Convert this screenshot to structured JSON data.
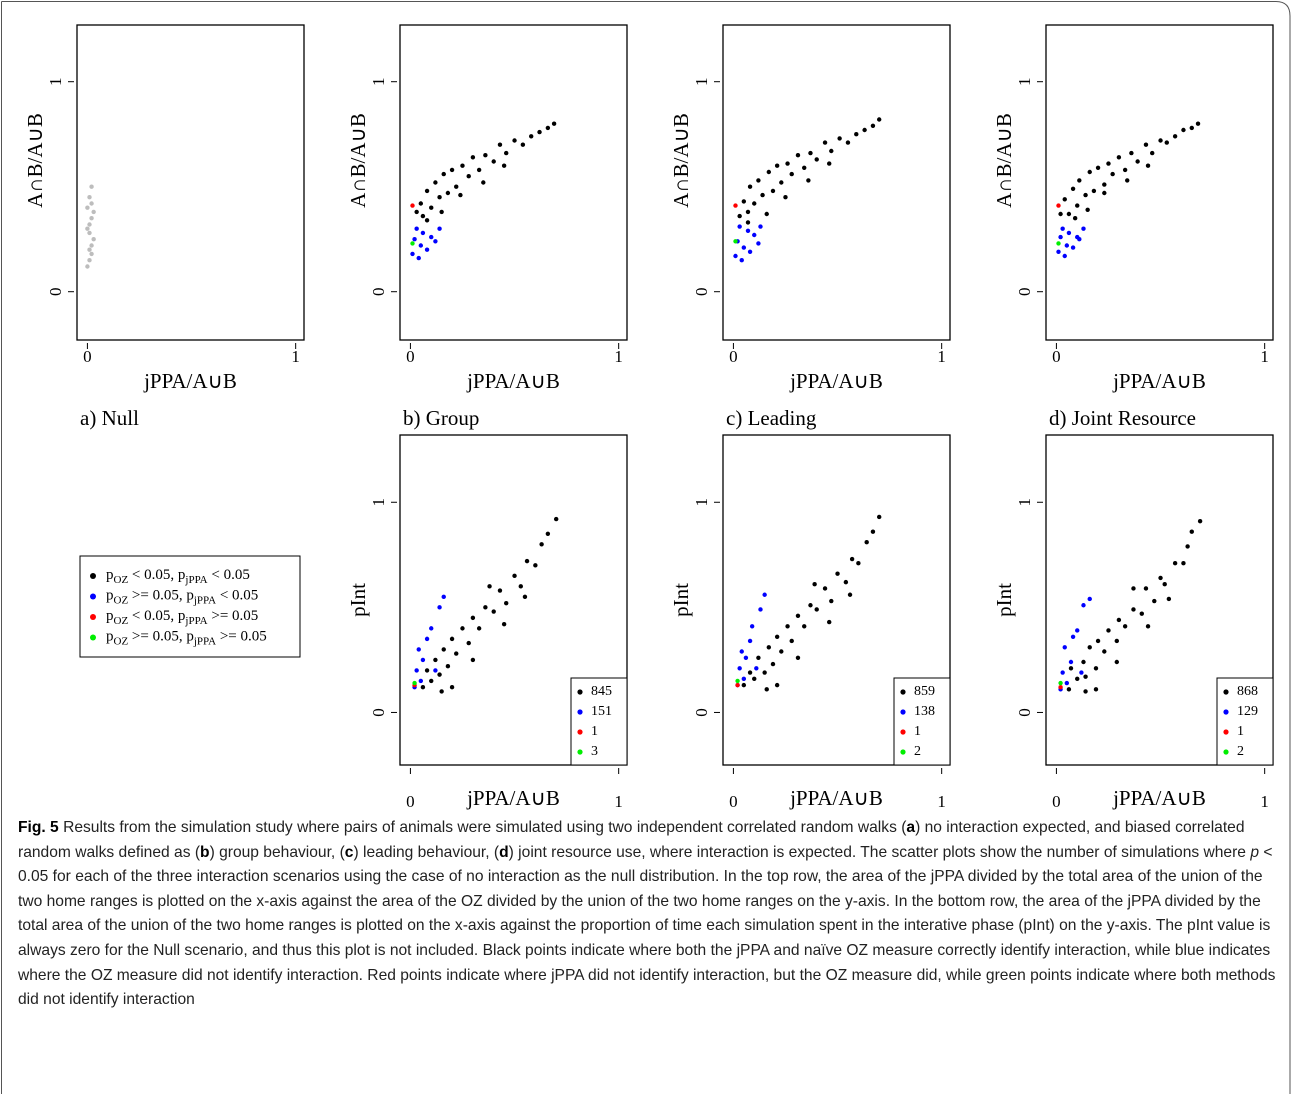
{
  "chart_data": [
    {
      "type": "scatter",
      "panel_label": "a) Null",
      "x_label": "jPPA/A∪B",
      "y_label": "A∩B/A∪B",
      "xlim": [
        -0.05,
        1.04
      ],
      "ylim": [
        -0.23,
        1.27
      ],
      "xticks": [
        0,
        1
      ],
      "yticks": [
        0,
        1
      ],
      "series": [
        {
          "color": "#bdbdbd",
          "x": [
            0.0,
            0.01,
            0.01,
            0.02,
            0.02,
            0.02,
            0.03,
            0.01,
            0.0,
            0.02,
            0.03,
            0.01,
            0.02,
            0.01,
            0.0
          ],
          "y": [
            0.12,
            0.2,
            0.28,
            0.35,
            0.42,
            0.5,
            0.25,
            0.15,
            0.3,
            0.22,
            0.38,
            0.45,
            0.18,
            0.32,
            0.4
          ]
        }
      ]
    },
    {
      "type": "scatter",
      "panel_label": "b) Group",
      "x_label": "jPPA/A∪B",
      "y_label": "A∩B/A∪B",
      "xlim": [
        -0.05,
        1.04
      ],
      "ylim": [
        -0.23,
        1.27
      ],
      "xticks": [
        0,
        1
      ],
      "yticks": [
        0,
        1
      ],
      "series": [
        {
          "color": "#000000",
          "x": [
            0.03,
            0.05,
            0.06,
            0.08,
            0.1,
            0.12,
            0.14,
            0.16,
            0.18,
            0.2,
            0.22,
            0.25,
            0.28,
            0.3,
            0.33,
            0.36,
            0.4,
            0.43,
            0.46,
            0.5,
            0.54,
            0.58,
            0.62,
            0.66,
            0.69,
            0.08,
            0.15,
            0.24,
            0.35,
            0.45
          ],
          "y": [
            0.38,
            0.42,
            0.36,
            0.48,
            0.4,
            0.52,
            0.45,
            0.56,
            0.47,
            0.58,
            0.5,
            0.6,
            0.55,
            0.64,
            0.58,
            0.65,
            0.62,
            0.7,
            0.66,
            0.72,
            0.7,
            0.74,
            0.76,
            0.78,
            0.8,
            0.34,
            0.38,
            0.46,
            0.52,
            0.6
          ]
        },
        {
          "color": "#0000ff",
          "x": [
            0.01,
            0.02,
            0.03,
            0.04,
            0.05,
            0.06,
            0.08,
            0.1,
            0.12,
            0.14
          ],
          "y": [
            0.18,
            0.25,
            0.3,
            0.16,
            0.22,
            0.28,
            0.2,
            0.26,
            0.24,
            0.3
          ]
        },
        {
          "color": "#ff0000",
          "x": [
            0.01
          ],
          "y": [
            0.41
          ]
        },
        {
          "color": "#00ee00",
          "x": [
            0.01
          ],
          "y": [
            0.23
          ]
        }
      ]
    },
    {
      "type": "scatter",
      "panel_label": "c) Leading",
      "x_label": "jPPA/A∪B",
      "y_label": "A∩B/A∪B",
      "xlim": [
        -0.05,
        1.04
      ],
      "ylim": [
        -0.23,
        1.27
      ],
      "xticks": [
        0,
        1
      ],
      "yticks": [
        0,
        1
      ],
      "series": [
        {
          "color": "#000000",
          "x": [
            0.03,
            0.05,
            0.07,
            0.08,
            0.1,
            0.12,
            0.14,
            0.17,
            0.19,
            0.21,
            0.23,
            0.26,
            0.28,
            0.31,
            0.34,
            0.37,
            0.4,
            0.44,
            0.47,
            0.51,
            0.55,
            0.59,
            0.63,
            0.67,
            0.7,
            0.07,
            0.16,
            0.25,
            0.36,
            0.46
          ],
          "y": [
            0.36,
            0.43,
            0.38,
            0.5,
            0.42,
            0.53,
            0.46,
            0.57,
            0.48,
            0.6,
            0.52,
            0.61,
            0.56,
            0.65,
            0.59,
            0.66,
            0.63,
            0.71,
            0.67,
            0.73,
            0.71,
            0.75,
            0.77,
            0.79,
            0.82,
            0.33,
            0.37,
            0.45,
            0.53,
            0.61
          ]
        },
        {
          "color": "#0000ff",
          "x": [
            0.01,
            0.02,
            0.03,
            0.04,
            0.05,
            0.07,
            0.08,
            0.1,
            0.12,
            0.13
          ],
          "y": [
            0.17,
            0.24,
            0.31,
            0.15,
            0.21,
            0.29,
            0.19,
            0.27,
            0.23,
            0.31
          ]
        },
        {
          "color": "#ff0000",
          "x": [
            0.01
          ],
          "y": [
            0.41
          ]
        },
        {
          "color": "#00ee00",
          "x": [
            0.01
          ],
          "y": [
            0.24
          ]
        }
      ]
    },
    {
      "type": "scatter",
      "panel_label": "d) Joint Resource",
      "x_label": "jPPA/A∪B",
      "y_label": "A∩B/A∪B",
      "xlim": [
        -0.05,
        1.04
      ],
      "ylim": [
        -0.23,
        1.27
      ],
      "xticks": [
        0,
        1
      ],
      "yticks": [
        0,
        1
      ],
      "series": [
        {
          "color": "#000000",
          "x": [
            0.02,
            0.04,
            0.06,
            0.08,
            0.1,
            0.11,
            0.14,
            0.16,
            0.18,
            0.2,
            0.23,
            0.25,
            0.27,
            0.3,
            0.33,
            0.36,
            0.39,
            0.43,
            0.46,
            0.5,
            0.53,
            0.57,
            0.61,
            0.65,
            0.68,
            0.09,
            0.15,
            0.23,
            0.34,
            0.44
          ],
          "y": [
            0.37,
            0.44,
            0.37,
            0.49,
            0.41,
            0.53,
            0.46,
            0.57,
            0.48,
            0.59,
            0.51,
            0.61,
            0.56,
            0.64,
            0.58,
            0.66,
            0.62,
            0.7,
            0.66,
            0.72,
            0.71,
            0.74,
            0.77,
            0.78,
            0.8,
            0.35,
            0.39,
            0.47,
            0.53,
            0.6
          ]
        },
        {
          "color": "#0000ff",
          "x": [
            0.01,
            0.02,
            0.03,
            0.04,
            0.05,
            0.06,
            0.08,
            0.1,
            0.11,
            0.13
          ],
          "y": [
            0.19,
            0.26,
            0.3,
            0.17,
            0.22,
            0.28,
            0.21,
            0.26,
            0.25,
            0.3
          ]
        },
        {
          "color": "#ff0000",
          "x": [
            0.01
          ],
          "y": [
            0.41
          ]
        },
        {
          "color": "#00ee00",
          "x": [
            0.01
          ],
          "y": [
            0.23
          ]
        }
      ]
    },
    {
      "type": "scatter",
      "x_label": "jPPA/A∪B",
      "y_label": "pInt",
      "xlim": [
        -0.05,
        1.04
      ],
      "ylim": [
        -0.25,
        1.32
      ],
      "xticks": [
        0,
        1
      ],
      "yticks": [
        0,
        1
      ],
      "series": [
        {
          "color": "#000000",
          "count": 845,
          "x": [
            0.06,
            0.08,
            0.1,
            0.12,
            0.14,
            0.16,
            0.18,
            0.2,
            0.22,
            0.25,
            0.28,
            0.3,
            0.33,
            0.36,
            0.4,
            0.43,
            0.46,
            0.5,
            0.53,
            0.56,
            0.6,
            0.63,
            0.66,
            0.7,
            0.2,
            0.3,
            0.45,
            0.55,
            0.15,
            0.38
          ],
          "y": [
            0.12,
            0.2,
            0.15,
            0.25,
            0.18,
            0.3,
            0.22,
            0.35,
            0.28,
            0.4,
            0.33,
            0.45,
            0.4,
            0.5,
            0.48,
            0.58,
            0.52,
            0.65,
            0.6,
            0.72,
            0.7,
            0.8,
            0.85,
            0.92,
            0.12,
            0.25,
            0.42,
            0.55,
            0.1,
            0.6
          ]
        },
        {
          "color": "#0000ff",
          "count": 151,
          "x": [
            0.02,
            0.03,
            0.04,
            0.05,
            0.06,
            0.08,
            0.1,
            0.12,
            0.14,
            0.16
          ],
          "y": [
            0.12,
            0.2,
            0.3,
            0.15,
            0.25,
            0.35,
            0.4,
            0.2,
            0.5,
            0.55
          ]
        },
        {
          "color": "#ff0000",
          "count": 1,
          "x": [
            0.02
          ],
          "y": [
            0.13
          ]
        },
        {
          "color": "#00ee00",
          "count": 3,
          "x": [
            0.02
          ],
          "y": [
            0.14
          ]
        }
      ]
    },
    {
      "type": "scatter",
      "x_label": "jPPA/A∪B",
      "y_label": "pInt",
      "xlim": [
        -0.05,
        1.04
      ],
      "ylim": [
        -0.25,
        1.32
      ],
      "xticks": [
        0,
        1
      ],
      "yticks": [
        0,
        1
      ],
      "series": [
        {
          "color": "#000000",
          "count": 859,
          "x": [
            0.05,
            0.08,
            0.1,
            0.12,
            0.15,
            0.17,
            0.19,
            0.21,
            0.23,
            0.26,
            0.28,
            0.31,
            0.34,
            0.37,
            0.4,
            0.44,
            0.47,
            0.5,
            0.54,
            0.57,
            0.6,
            0.64,
            0.67,
            0.7,
            0.21,
            0.31,
            0.46,
            0.56,
            0.16,
            0.39
          ],
          "y": [
            0.13,
            0.19,
            0.16,
            0.26,
            0.19,
            0.31,
            0.23,
            0.36,
            0.29,
            0.41,
            0.34,
            0.46,
            0.41,
            0.51,
            0.49,
            0.59,
            0.53,
            0.66,
            0.62,
            0.73,
            0.71,
            0.81,
            0.86,
            0.93,
            0.13,
            0.26,
            0.43,
            0.56,
            0.11,
            0.61
          ]
        },
        {
          "color": "#0000ff",
          "count": 138,
          "x": [
            0.02,
            0.03,
            0.04,
            0.05,
            0.06,
            0.08,
            0.09,
            0.11,
            0.13,
            0.15
          ],
          "y": [
            0.13,
            0.21,
            0.29,
            0.16,
            0.26,
            0.34,
            0.41,
            0.21,
            0.49,
            0.56
          ]
        },
        {
          "color": "#ff0000",
          "count": 1,
          "x": [
            0.02
          ],
          "y": [
            0.13
          ]
        },
        {
          "color": "#00ee00",
          "count": 2,
          "x": [
            0.02
          ],
          "y": [
            0.15
          ]
        }
      ]
    },
    {
      "type": "scatter",
      "x_label": "jPPA/A∪B",
      "y_label": "pInt",
      "xlim": [
        -0.05,
        1.04
      ],
      "ylim": [
        -0.25,
        1.32
      ],
      "xticks": [
        0,
        1
      ],
      "yticks": [
        0,
        1
      ],
      "series": [
        {
          "color": "#000000",
          "count": 868,
          "x": [
            0.06,
            0.07,
            0.1,
            0.13,
            0.14,
            0.16,
            0.19,
            0.2,
            0.23,
            0.25,
            0.29,
            0.3,
            0.33,
            0.37,
            0.41,
            0.43,
            0.47,
            0.5,
            0.52,
            0.57,
            0.61,
            0.63,
            0.65,
            0.69,
            0.19,
            0.29,
            0.44,
            0.54,
            0.14,
            0.37
          ],
          "y": [
            0.11,
            0.21,
            0.16,
            0.24,
            0.17,
            0.31,
            0.21,
            0.34,
            0.29,
            0.39,
            0.34,
            0.44,
            0.41,
            0.49,
            0.47,
            0.59,
            0.53,
            0.64,
            0.61,
            0.71,
            0.71,
            0.79,
            0.86,
            0.91,
            0.11,
            0.24,
            0.41,
            0.54,
            0.1,
            0.59
          ]
        },
        {
          "color": "#0000ff",
          "count": 129,
          "x": [
            0.02,
            0.03,
            0.04,
            0.05,
            0.07,
            0.08,
            0.1,
            0.12,
            0.13,
            0.16
          ],
          "y": [
            0.11,
            0.19,
            0.31,
            0.14,
            0.24,
            0.36,
            0.39,
            0.19,
            0.51,
            0.54
          ]
        },
        {
          "color": "#ff0000",
          "count": 1,
          "x": [
            0.02
          ],
          "y": [
            0.12
          ]
        },
        {
          "color": "#00ee00",
          "count": 2,
          "x": [
            0.02
          ],
          "y": [
            0.14
          ]
        }
      ]
    }
  ],
  "legend": {
    "entries": [
      {
        "color": "#000000",
        "parts": [
          "p",
          "OZ",
          " < 0.05, p",
          "jPPA",
          " < 0.05"
        ]
      },
      {
        "color": "#0000ff",
        "parts": [
          "p",
          "OZ",
          " >= 0.05, p",
          "jPPA",
          " < 0.05"
        ]
      },
      {
        "color": "#ff0000",
        "parts": [
          "p",
          "OZ",
          " < 0.05, p",
          "jPPA",
          " >= 0.05"
        ]
      },
      {
        "color": "#00ee00",
        "parts": [
          "p",
          "OZ",
          " >= 0.05, p",
          "jPPA",
          " >= 0.05"
        ]
      }
    ]
  },
  "caption": {
    "parts": [
      {
        "text": "Fig. 5",
        "style": "bold"
      },
      {
        "text": " Results from the simulation study where pairs of animals were simulated using two independent correlated random walks ("
      },
      {
        "text": "a",
        "style": "bold"
      },
      {
        "text": ") no interaction expected, and biased correlated random walks defined as ("
      },
      {
        "text": "b",
        "style": "bold"
      },
      {
        "text": ") group behaviour, ("
      },
      {
        "text": "c",
        "style": "bold"
      },
      {
        "text": ") leading behaviour, ("
      },
      {
        "text": "d",
        "style": "bold"
      },
      {
        "text": ") joint resource use, where interaction is expected. The scatter plots show the number of simulations where "
      },
      {
        "text": "p",
        "style": "italic"
      },
      {
        "text": " < 0.05 for each of the three interaction scenarios using the case of no interaction as the null distribution. In the top row, the area of the jPPA divided by the total area of the union of the two home ranges is plotted on the x-axis against the area of the OZ divided by the union of the two home ranges on the y-axis. In the bottom row, the area of the jPPA divided by the total area of the union of the two home ranges is plotted on the x-axis against the proportion of time each simulation spent in the interative phase (pInt) on the y-axis. The pInt value is always zero for the Null scenario, and thus this plot is not included. Black points indicate where both the jPPA and naïve OZ measure correctly identify interaction, while blue indicates where the OZ measure did not identify interaction. Red points indicate where jPPA did not identify interaction, but the OZ measure did, while green points indicate where both methods did not identify interaction"
      }
    ]
  }
}
